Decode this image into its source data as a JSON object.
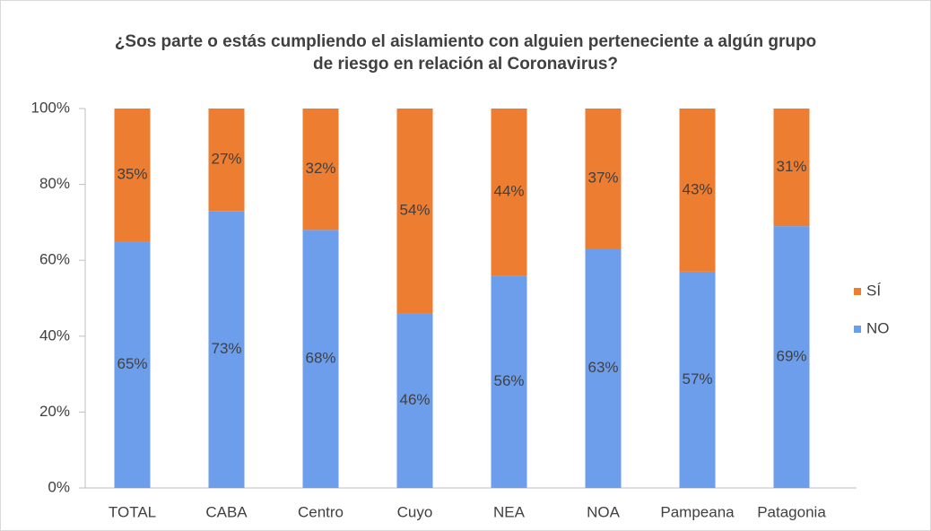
{
  "chart_data": {
    "type": "stacked_bar",
    "title": "¿Sos parte o estás cumpliendo el aislamiento con alguien perteneciente a algún grupo de riesgo en relación al Coronavirus?",
    "categories": [
      "TOTAL",
      "CABA",
      "Centro",
      "Cuyo",
      "NEA",
      "NOA",
      "Pampeana",
      "Patagonia"
    ],
    "series": [
      {
        "name": "NO",
        "color": "#6d9eeb",
        "values": [
          65,
          73,
          68,
          46,
          56,
          63,
          57,
          69
        ],
        "value_labels": [
          "65%",
          "73%",
          "68%",
          "46%",
          "56%",
          "63%",
          "57%",
          "69%"
        ]
      },
      {
        "name": "SÍ",
        "color": "#ed7d31",
        "values": [
          35,
          27,
          32,
          54,
          44,
          37,
          43,
          31
        ],
        "value_labels": [
          "35%",
          "27%",
          "32%",
          "54%",
          "44%",
          "37%",
          "43%",
          "31%"
        ]
      }
    ],
    "ylim": [
      0,
      100
    ],
    "yticks": [
      {
        "value": 0,
        "label": "0%"
      },
      {
        "value": 20,
        "label": "20%"
      },
      {
        "value": 40,
        "label": "40%"
      },
      {
        "value": 60,
        "label": "60%"
      },
      {
        "value": 80,
        "label": "80%"
      },
      {
        "value": 100,
        "label": "100%"
      }
    ],
    "grid": false,
    "legend": "right"
  }
}
